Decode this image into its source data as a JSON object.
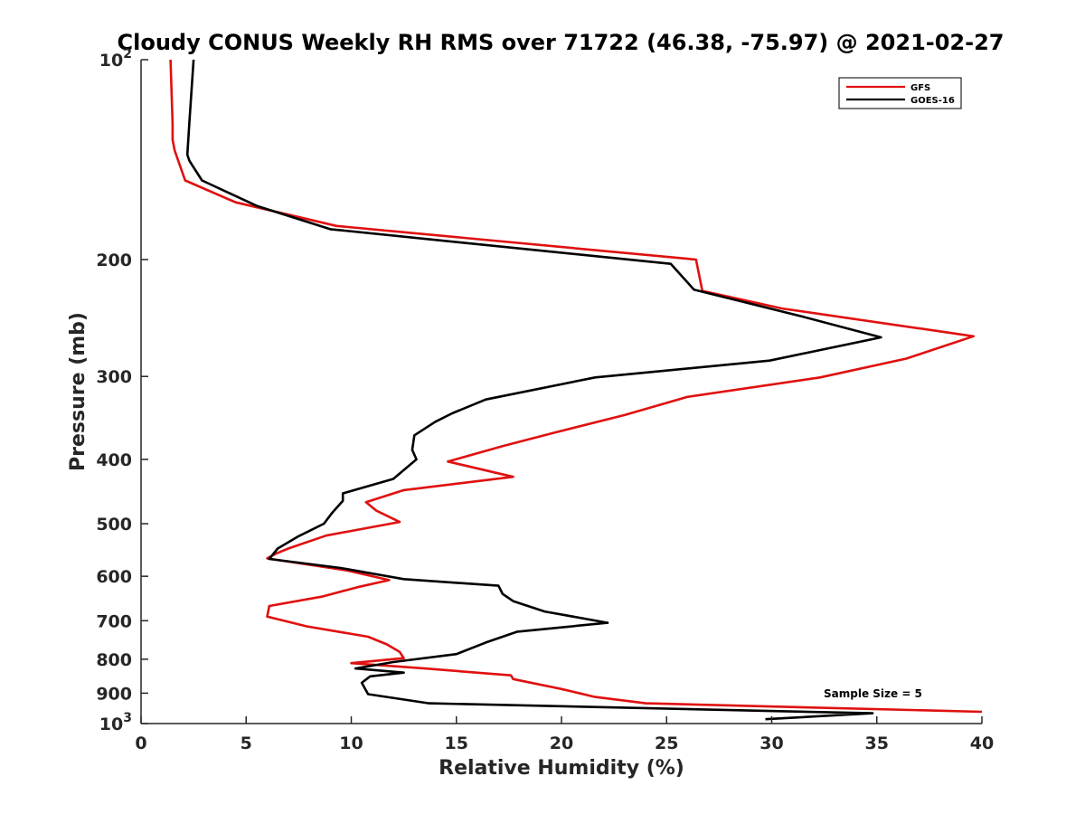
{
  "chart_data": {
    "type": "line",
    "title": "Cloudy CONUS Weekly RH RMS over 71722 (46.38, -75.97) @ 2021-02-27",
    "xlabel": "Relative Humidity (%)",
    "ylabel": "Pressure (mb)",
    "xlim": [
      0,
      40
    ],
    "ylim": [
      100,
      1000
    ],
    "yscale": "log",
    "y_reversed": true,
    "x_ticks": [
      0,
      5,
      10,
      15,
      20,
      25,
      30,
      35,
      40
    ],
    "x_tick_labels": [
      "0",
      "5",
      "10",
      "15",
      "20",
      "25",
      "30",
      "35",
      "40"
    ],
    "y_ticks": [
      100,
      200,
      300,
      400,
      500,
      600,
      700,
      800,
      900,
      1000
    ],
    "y_tick_labels": [
      {
        "base": "10",
        "exp": "2"
      },
      {
        "base": "200",
        "exp": ""
      },
      {
        "base": "300",
        "exp": ""
      },
      {
        "base": "400",
        "exp": ""
      },
      {
        "base": "500",
        "exp": ""
      },
      {
        "base": "600",
        "exp": ""
      },
      {
        "base": "700",
        "exp": ""
      },
      {
        "base": "800",
        "exp": ""
      },
      {
        "base": "900",
        "exp": ""
      },
      {
        "base": "10",
        "exp": "3"
      }
    ],
    "legend_position": "top-right",
    "annotation": "Sample Size = 5",
    "series": [
      {
        "name": "GFS",
        "color": "#e01010",
        "points": [
          [
            1.4,
            100
          ],
          [
            1.5,
            125
          ],
          [
            1.5,
            132
          ],
          [
            1.6,
            137
          ],
          [
            2.1,
            152
          ],
          [
            4.5,
            164
          ],
          [
            9.3,
            178
          ],
          [
            26.4,
            200
          ],
          [
            26.7,
            223
          ],
          [
            30.5,
            237
          ],
          [
            39.6,
            261
          ],
          [
            36.4,
            282
          ],
          [
            32.3,
            301
          ],
          [
            26.0,
            322
          ],
          [
            23.0,
            343
          ],
          [
            19.6,
            365
          ],
          [
            17.2,
            382
          ],
          [
            14.6,
            403
          ],
          [
            17.7,
            425
          ],
          [
            12.5,
            445
          ],
          [
            10.7,
            464
          ],
          [
            11.2,
            478
          ],
          [
            12.3,
            497
          ],
          [
            8.8,
            521
          ],
          [
            7.0,
            545
          ],
          [
            6.4,
            555
          ],
          [
            6.0,
            564
          ],
          [
            9.8,
            588
          ],
          [
            11.8,
            608
          ],
          [
            10.3,
            623
          ],
          [
            8.6,
            644
          ],
          [
            6.1,
            665
          ],
          [
            6.0,
            690
          ],
          [
            7.9,
            714
          ],
          [
            10.8,
            740
          ],
          [
            11.7,
            760
          ],
          [
            12.3,
            780
          ],
          [
            12.5,
            797
          ],
          [
            10.0,
            811
          ],
          [
            13.5,
            826
          ],
          [
            17.6,
            846
          ],
          [
            17.7,
            857
          ],
          [
            20.0,
            887
          ],
          [
            21.6,
            912
          ],
          [
            24.0,
            932
          ],
          [
            40.0,
            960
          ]
        ]
      },
      {
        "name": "GOES-16",
        "color": "#000000",
        "points": [
          [
            2.5,
            100
          ],
          [
            2.3,
            124
          ],
          [
            2.2,
            139
          ],
          [
            2.3,
            142
          ],
          [
            2.9,
            152
          ],
          [
            5.5,
            166
          ],
          [
            9.0,
            180
          ],
          [
            25.2,
            203
          ],
          [
            26.3,
            222
          ],
          [
            31.5,
            244
          ],
          [
            35.2,
            262
          ],
          [
            29.9,
            284
          ],
          [
            21.6,
            301
          ],
          [
            16.4,
            325
          ],
          [
            14.8,
            341
          ],
          [
            14.0,
            351
          ],
          [
            13.0,
            368
          ],
          [
            12.9,
            387
          ],
          [
            13.1,
            400
          ],
          [
            12.0,
            428
          ],
          [
            9.6,
            450
          ],
          [
            9.6,
            462
          ],
          [
            9.1,
            481
          ],
          [
            8.7,
            500
          ],
          [
            7.5,
            522
          ],
          [
            6.5,
            545
          ],
          [
            6.1,
            565
          ],
          [
            9.5,
            583
          ],
          [
            12.5,
            606
          ],
          [
            17.0,
            620
          ],
          [
            17.2,
            638
          ],
          [
            17.7,
            654
          ],
          [
            19.2,
            678
          ],
          [
            22.2,
            705
          ],
          [
            17.9,
            727
          ],
          [
            16.4,
            755
          ],
          [
            15.0,
            786
          ],
          [
            12.0,
            808
          ],
          [
            10.2,
            826
          ],
          [
            12.5,
            838
          ],
          [
            10.9,
            849
          ],
          [
            10.5,
            868
          ],
          [
            10.8,
            903
          ],
          [
            13.7,
            932
          ],
          [
            34.8,
            965
          ],
          [
            29.7,
            985
          ]
        ]
      }
    ]
  }
}
